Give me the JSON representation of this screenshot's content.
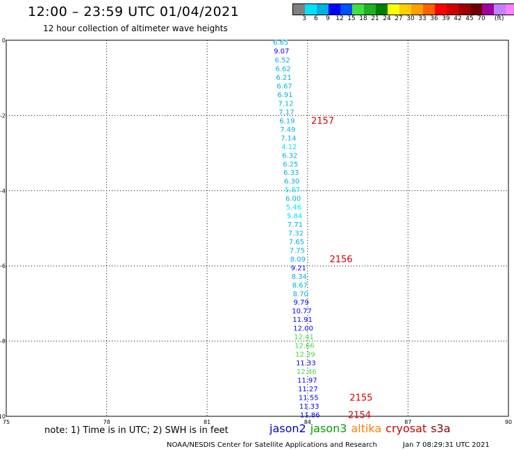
{
  "header": {
    "title": "12:00 – 23:59 UTC 01/04/2021",
    "subtitle": "12 hour collection of altimeter wave heights"
  },
  "colorbar": {
    "colors": [
      "#808080",
      "#00e0ff",
      "#00b0e0",
      "#0000ff",
      "#0050ff",
      "#40e040",
      "#20b020",
      "#008000",
      "#ffff00",
      "#ffd000",
      "#ffa000",
      "#ff6000",
      "#ff0000",
      "#d00000",
      "#a00000",
      "#700000",
      "#a000a0",
      "#c080ff",
      "#ff80ff",
      "#000000"
    ],
    "labels": [
      "3",
      "6",
      "9",
      "12",
      "15",
      "18",
      "21",
      "24",
      "27",
      "30",
      "33",
      "36",
      "39",
      "42",
      "45",
      "70"
    ],
    "unit": "(ft)"
  },
  "chart_data": {
    "type": "scatter",
    "title": "12:00 – 23:59 UTC 01/04/2021",
    "xlim": [
      75,
      90
    ],
    "ylim": [
      -10,
      0
    ],
    "xticks": [
      75,
      78,
      81,
      84,
      87,
      90
    ],
    "yticks": [
      0,
      -2,
      -4,
      -6,
      -8,
      -10
    ],
    "grid": true,
    "points": [
      {
        "lon": 83.2,
        "lat": -0.05,
        "swh": "6.65",
        "color": "#00b0e0"
      },
      {
        "lon": 83.22,
        "lat": -0.28,
        "swh": "9.07",
        "color": "#0000ff"
      },
      {
        "lon": 83.25,
        "lat": -0.52,
        "swh": "6.52",
        "color": "#00b0e0"
      },
      {
        "lon": 83.27,
        "lat": -0.75,
        "swh": "6.62",
        "color": "#00b0e0"
      },
      {
        "lon": 83.29,
        "lat": -0.98,
        "swh": "6.21",
        "color": "#00b0e0"
      },
      {
        "lon": 83.31,
        "lat": -1.21,
        "swh": "6.67",
        "color": "#00b0e0"
      },
      {
        "lon": 83.33,
        "lat": -1.44,
        "swh": "6.91",
        "color": "#00b0e0"
      },
      {
        "lon": 83.35,
        "lat": -1.67,
        "swh": "7.12",
        "color": "#00b0e0"
      },
      {
        "lon": 83.37,
        "lat": -1.9,
        "swh": "7.17",
        "color": "#00b0e0"
      },
      {
        "lon": 83.39,
        "lat": -2.13,
        "swh": "6.19",
        "color": "#00b0e0"
      },
      {
        "lon": 83.41,
        "lat": -2.36,
        "swh": "7.49",
        "color": "#00b0e0"
      },
      {
        "lon": 83.43,
        "lat": -2.59,
        "swh": "7.14",
        "color": "#00b0e0"
      },
      {
        "lon": 83.45,
        "lat": -2.82,
        "swh": "4.12",
        "color": "#00e0ff"
      },
      {
        "lon": 83.47,
        "lat": -3.05,
        "swh": "6.32",
        "color": "#00b0e0"
      },
      {
        "lon": 83.49,
        "lat": -3.28,
        "swh": "6.25",
        "color": "#00b0e0"
      },
      {
        "lon": 83.51,
        "lat": -3.51,
        "swh": "6.33",
        "color": "#00b0e0"
      },
      {
        "lon": 83.53,
        "lat": -3.74,
        "swh": "6.30",
        "color": "#00b0e0"
      },
      {
        "lon": 83.55,
        "lat": -3.97,
        "swh": "5.87",
        "color": "#00e0ff"
      },
      {
        "lon": 83.57,
        "lat": -4.2,
        "swh": "6.00",
        "color": "#00b0e0"
      },
      {
        "lon": 83.59,
        "lat": -4.43,
        "swh": "5.46",
        "color": "#00e0ff"
      },
      {
        "lon": 83.61,
        "lat": -4.66,
        "swh": "5.84",
        "color": "#00e0ff"
      },
      {
        "lon": 83.63,
        "lat": -4.89,
        "swh": "7.71",
        "color": "#00b0e0"
      },
      {
        "lon": 83.65,
        "lat": -5.12,
        "swh": "7.32",
        "color": "#00b0e0"
      },
      {
        "lon": 83.67,
        "lat": -5.35,
        "swh": "7.65",
        "color": "#00b0e0"
      },
      {
        "lon": 83.69,
        "lat": -5.58,
        "swh": "7.75",
        "color": "#00b0e0"
      },
      {
        "lon": 83.71,
        "lat": -5.81,
        "swh": "8.09",
        "color": "#00b0e0"
      },
      {
        "lon": 83.73,
        "lat": -6.04,
        "swh": "9.21",
        "color": "#0000ff"
      },
      {
        "lon": 83.75,
        "lat": -6.27,
        "swh": "8.34",
        "color": "#00b0e0"
      },
      {
        "lon": 83.77,
        "lat": -6.5,
        "swh": "8.67",
        "color": "#00b0e0"
      },
      {
        "lon": 83.79,
        "lat": -6.73,
        "swh": "8.70",
        "color": "#00b0e0"
      },
      {
        "lon": 83.81,
        "lat": -6.96,
        "swh": "9.79",
        "color": "#0000ff"
      },
      {
        "lon": 83.83,
        "lat": -7.19,
        "swh": "10.77",
        "color": "#0000ff"
      },
      {
        "lon": 83.85,
        "lat": -7.42,
        "swh": "11.91",
        "color": "#0000ff"
      },
      {
        "lon": 83.87,
        "lat": -7.65,
        "swh": "12.00",
        "color": "#0000ff"
      },
      {
        "lon": 83.89,
        "lat": -7.88,
        "swh": "12.41",
        "color": "#40e040"
      },
      {
        "lon": 83.91,
        "lat": -8.11,
        "swh": "12.66",
        "color": "#40e040"
      },
      {
        "lon": 83.93,
        "lat": -8.34,
        "swh": "12.39",
        "color": "#40e040"
      },
      {
        "lon": 83.95,
        "lat": -8.57,
        "swh": "11.33",
        "color": "#0000ff"
      },
      {
        "lon": 83.97,
        "lat": -8.8,
        "swh": "12.46",
        "color": "#40e040"
      },
      {
        "lon": 83.99,
        "lat": -9.03,
        "swh": "11.97",
        "color": "#0000ff"
      },
      {
        "lon": 84.01,
        "lat": -9.26,
        "swh": "11.27",
        "color": "#0000ff"
      },
      {
        "lon": 84.03,
        "lat": -9.49,
        "swh": "11.55",
        "color": "#0000ff"
      },
      {
        "lon": 84.05,
        "lat": -9.72,
        "swh": "11.33",
        "color": "#0000ff"
      },
      {
        "lon": 84.07,
        "lat": -9.95,
        "swh": "11.86",
        "color": "#0000ff"
      }
    ],
    "time_labels": [
      {
        "lon": 84.45,
        "lat": -2.13,
        "text": "2157",
        "color": "#d00000"
      },
      {
        "lon": 85.0,
        "lat": -5.81,
        "text": "2156",
        "color": "#d00000"
      },
      {
        "lon": 85.6,
        "lat": -9.49,
        "text": "2155",
        "color": "#d00000"
      },
      {
        "lon": 85.55,
        "lat": -9.95,
        "text": "2154",
        "color": "#d00000"
      }
    ]
  },
  "footer": {
    "note": "note:  1) Time is in UTC;  2) SWH is in feet",
    "legend": [
      {
        "name": "jason2",
        "color": "#0000cc"
      },
      {
        "name": "jason3",
        "color": "#00a000"
      },
      {
        "name": "altika",
        "color": "#ff8000"
      },
      {
        "name": "cryosat",
        "color": "#cc0000"
      },
      {
        "name": "s3a",
        "color": "#800000"
      }
    ],
    "credit": "NOAA/NESDIS Center for Satellite Applications and Research",
    "timestamp": "Jan  7 08:29:31 UTC 2021"
  }
}
